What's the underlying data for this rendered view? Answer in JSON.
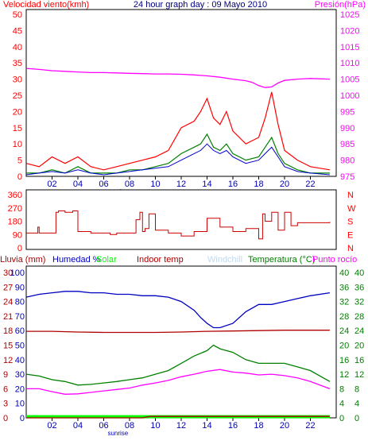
{
  "header": {
    "left": "Velocidad viento(kmh)",
    "center": "24 hour graph day : 09 Mayo 2010",
    "right": "Presión(hPa)"
  },
  "legend3": {
    "rain": "Lluvia (mm)",
    "humidity": "Humedad %",
    "solar": "Solar",
    "indoor": "Indoor temp",
    "windchill": "Windchill",
    "temperature": "Temperatura (°C)",
    "dewpoint": "Punto rocío"
  },
  "sunrise_label": "sunrise",
  "colors": {
    "wind_gust": "#ff0000",
    "wind_avg": "#008000",
    "wind_dir_trace": "#0000cc",
    "pressure": "#ff00ff",
    "direction": "#cc0000",
    "humidity": "#0000c0",
    "temperature": "#008000",
    "dewpoint": "#ff00ff",
    "indoor": "#b00000",
    "solar": "#00ff00",
    "rain": "#b00000",
    "windchill": "#c0d8f0",
    "left_axis": "#ff0000",
    "humidity_axis": "#0000c0",
    "temp_axis": "#008000"
  },
  "chart_data": [
    {
      "type": "line",
      "title": "24 hour graph day : 09 Mayo 2010",
      "x_ticks": [
        "02",
        "04",
        "06",
        "08",
        "10",
        "12",
        "14",
        "16",
        "18",
        "20",
        "22"
      ],
      "y_left": {
        "label": "Velocidad viento(kmh)",
        "ticks": [
          "50",
          "45",
          "40",
          "35",
          "30",
          "25",
          "20",
          "15",
          "10",
          "5",
          "0"
        ],
        "ylim": [
          0,
          50
        ]
      },
      "y_right": {
        "label": "Presión(hPa)",
        "ticks": [
          "1025",
          "1020",
          "1015",
          "1010",
          "1005",
          "1000",
          "995",
          "990",
          "985",
          "980",
          "975"
        ],
        "ylim": [
          975,
          1025
        ]
      },
      "series": [
        {
          "name": "Presión(hPa)",
          "axis": "right",
          "x": [
            0,
            1,
            2,
            3,
            4,
            5,
            6,
            7,
            8,
            9,
            10,
            11,
            12,
            13,
            14,
            15,
            16,
            17,
            17.5,
            18,
            18.5,
            19,
            19.5,
            20,
            21,
            22,
            23.5
          ],
          "values": [
            1008.3,
            1008,
            1007.6,
            1007.4,
            1007.2,
            1007,
            1007,
            1006.9,
            1006.8,
            1006.7,
            1006.6,
            1006.6,
            1006.5,
            1006.3,
            1006,
            1005.6,
            1005,
            1004.5,
            1004,
            1003,
            1002.4,
            1002.6,
            1003.8,
            1004.6,
            1005,
            1005.2,
            1005
          ]
        },
        {
          "name": "Velocidad viento(kmh)",
          "axis": "left",
          "x": [
            0,
            1,
            2,
            3,
            4,
            5,
            6,
            7,
            8,
            9,
            10,
            11,
            12,
            13,
            13.5,
            14,
            14.5,
            15,
            15.5,
            16,
            17,
            18,
            18.5,
            19,
            19.5,
            20,
            21,
            22,
            23.5
          ],
          "values": [
            4,
            3,
            6,
            4,
            6,
            3,
            2,
            3,
            4,
            5,
            6,
            8,
            15,
            17,
            20,
            24,
            18,
            16,
            20,
            14,
            10,
            12,
            18,
            26,
            16,
            8,
            5,
            3,
            2
          ]
        },
        {
          "axis": "left",
          "x": [
            0,
            1,
            2,
            3,
            4,
            5,
            6,
            7,
            8,
            9,
            10,
            11,
            12,
            13,
            13.5,
            14,
            14.5,
            15,
            15.5,
            16,
            17,
            18,
            18.5,
            19,
            19.5,
            20,
            21,
            22,
            23.5
          ],
          "values": [
            1,
            1,
            2,
            1,
            3,
            1,
            1,
            1,
            2,
            2,
            3,
            4,
            7,
            9,
            10,
            13,
            9,
            8,
            10,
            7,
            5,
            6,
            9,
            12,
            7,
            4,
            2,
            1,
            1
          ]
        },
        {
          "axis": "left",
          "x": [
            0,
            1,
            2,
            3,
            4,
            5,
            6,
            7,
            8,
            9,
            10,
            11,
            12,
            13,
            13.5,
            14,
            14.5,
            15,
            15.5,
            16,
            17,
            18,
            18.5,
            19,
            19.5,
            20,
            21,
            22,
            23.5
          ],
          "values": [
            0.5,
            1,
            1.5,
            1,
            2,
            1,
            0.5,
            1,
            1.5,
            2,
            2.5,
            3,
            5,
            7,
            8,
            10,
            8,
            7,
            8,
            6,
            4,
            5,
            7,
            9,
            6,
            3,
            1.5,
            1,
            0.5
          ]
        }
      ]
    },
    {
      "type": "scatter",
      "y_left": {
        "label": "",
        "ticks": [
          "360",
          "270",
          "180",
          "90",
          "0"
        ],
        "ylim": [
          0,
          360
        ]
      },
      "y_right_labels": [
        "N",
        "W",
        "S",
        "E",
        "N"
      ],
      "series": [
        {
          "name": "",
          "x": [
            0,
            0.8,
            0.9,
            1,
            2,
            2.3,
            2.5,
            3,
            3.6,
            4,
            5,
            6,
            6.5,
            7,
            8,
            8.5,
            8.8,
            9,
            9.2,
            9.5,
            10,
            11,
            12,
            13,
            14,
            15,
            16,
            17,
            18,
            18.3,
            18.5,
            19,
            19.5,
            20,
            20.5,
            21,
            22,
            23.5
          ],
          "values": [
            100,
            100,
            140,
            100,
            100,
            240,
            250,
            240,
            250,
            110,
            100,
            100,
            90,
            100,
            100,
            190,
            240,
            110,
            130,
            230,
            120,
            100,
            80,
            110,
            200,
            140,
            110,
            130,
            60,
            230,
            180,
            240,
            120,
            240,
            150,
            170,
            170,
            175
          ]
        }
      ]
    },
    {
      "type": "line",
      "y_rain": {
        "label": "Lluvia (mm)",
        "ticks": [
          "30",
          "27",
          "24",
          "21",
          "18",
          "15",
          "12",
          "9",
          "6",
          "3",
          "0"
        ],
        "ylim": [
          0,
          30
        ]
      },
      "y_humidity": {
        "label": "Humedad %",
        "ticks": [
          "100",
          "90",
          "80",
          "70",
          "60",
          "50",
          "40",
          "30",
          "20",
          "10",
          "0"
        ],
        "ylim": [
          0,
          100
        ]
      },
      "y_temp": {
        "label": "Temperatura (°C)",
        "ticks": [
          "40",
          "36",
          "32",
          "28",
          "24",
          "20",
          "16",
          "12",
          "8",
          "4",
          "0"
        ],
        "ylim": [
          0,
          40
        ]
      },
      "y_solar": {
        "label": "Solar",
        "ticks": [
          "40",
          "36",
          "32",
          "28",
          "24",
          "20",
          "16",
          "12",
          "8",
          "4",
          "0"
        ],
        "ylim": [
          0,
          40
        ]
      },
      "series": [
        {
          "name": "Humedad %",
          "axis": "humidity",
          "x": [
            0,
            1,
            2,
            3,
            4,
            5,
            6,
            7,
            8,
            9,
            10,
            11,
            12,
            13,
            13.5,
            14,
            14.5,
            15,
            16,
            17,
            18,
            19,
            20,
            21,
            22,
            23.5
          ],
          "values": [
            83,
            85,
            86,
            87,
            87,
            86,
            86,
            85,
            85,
            84,
            84,
            83,
            80,
            74,
            69,
            65,
            62,
            62,
            65,
            73,
            78,
            78,
            80,
            82,
            84,
            86
          ]
        },
        {
          "name": "Temperatura (°C)",
          "axis": "temp",
          "x": [
            0,
            1,
            2,
            3,
            4,
            5,
            6,
            7,
            8,
            9,
            10,
            11,
            12,
            13,
            14,
            14.5,
            15,
            16,
            17,
            18,
            19,
            20,
            21,
            22,
            23.5
          ],
          "values": [
            12,
            11.5,
            10.5,
            10,
            9,
            9.2,
            9.6,
            10,
            10.5,
            11,
            12,
            13,
            15,
            17,
            18.5,
            20,
            19,
            18,
            16,
            15,
            15,
            15,
            14,
            13,
            10
          ]
        },
        {
          "name": "Punto rocío",
          "axis": "temp",
          "x": [
            0,
            1,
            2,
            3,
            4,
            5,
            6,
            7,
            8,
            9,
            10,
            11,
            12,
            13,
            14,
            15,
            16,
            17,
            18,
            19,
            20,
            21,
            22,
            23.5
          ],
          "values": [
            8,
            8,
            7.2,
            6.5,
            6.6,
            7,
            7.4,
            7.8,
            8.2,
            9,
            9.6,
            10.3,
            11.3,
            12,
            12.8,
            13.3,
            12.6,
            12.3,
            11.8,
            12,
            11.6,
            11,
            10,
            8
          ]
        },
        {
          "name": "Indoor temp",
          "axis": "temp",
          "x": [
            0,
            2,
            4,
            6,
            8,
            10,
            12,
            14,
            16,
            18,
            20,
            22,
            23.5
          ],
          "values": [
            23.8,
            23.8,
            23.6,
            23.5,
            23.5,
            23.5,
            23.6,
            23.8,
            23.9,
            24,
            24.1,
            24.1,
            24.1
          ]
        },
        {
          "name": "Solar",
          "axis": "solar",
          "x": [
            0,
            23.5
          ],
          "values": [
            0.3,
            0.3
          ]
        },
        {
          "name": "Lluvia (mm)",
          "axis": "rain",
          "x": [
            0,
            9,
            9.6,
            23.5
          ],
          "values": [
            0,
            0,
            0.3,
            0.3
          ]
        }
      ]
    }
  ]
}
